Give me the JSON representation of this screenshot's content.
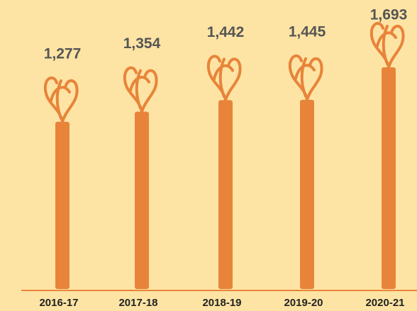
{
  "chart_data": {
    "type": "pictorial-bar",
    "categories": [
      "2016-17",
      "2017-18",
      "2018-19",
      "2019-20",
      "2020-21"
    ],
    "values": [
      1277,
      1354,
      1442,
      1445,
      1693
    ],
    "value_labels": [
      "1,277",
      "1,354",
      "1,442",
      "1,445",
      "1,693"
    ],
    "color": "#e8843a"
  }
}
